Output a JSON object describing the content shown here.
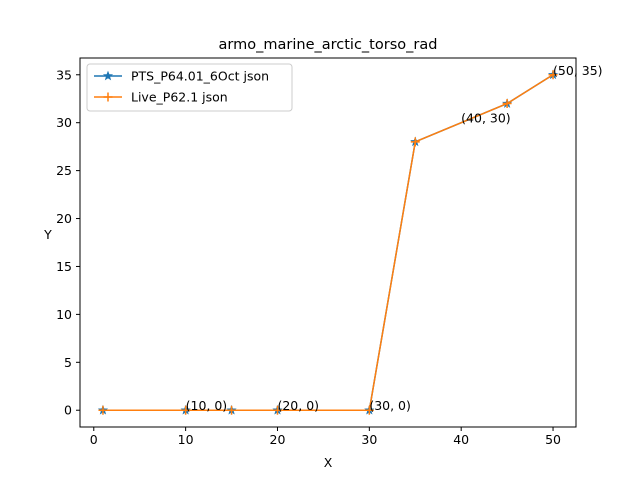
{
  "chart_data": {
    "type": "line",
    "title": "armo_marine_arctic_torso_rad",
    "xlabel": "X",
    "ylabel": "Y",
    "xlim": [
      -1.5,
      52.5
    ],
    "ylim": [
      -1.75,
      36.75
    ],
    "xticks": [
      0,
      10,
      20,
      30,
      40,
      50
    ],
    "yticks": [
      0,
      5,
      10,
      15,
      20,
      25,
      30,
      35
    ],
    "grid": false,
    "legend_position": "upper-left",
    "x": [
      1,
      10,
      15,
      20,
      30,
      35,
      40,
      45,
      50
    ],
    "series": [
      {
        "name": "PTS_P64.01_6Oct json",
        "color": "#1f77b4",
        "marker": "star",
        "x": [
          1,
          10,
          15,
          20,
          30,
          35,
          45,
          50
        ],
        "y": [
          0,
          0,
          0,
          0,
          0,
          28,
          32,
          35
        ]
      },
      {
        "name": "Live_P62.1 json",
        "color": "#ff7f0e",
        "marker": "plus",
        "x": [
          1,
          10,
          15,
          20,
          30,
          35,
          45,
          50
        ],
        "y": [
          0,
          0,
          0,
          0,
          0,
          28,
          32,
          35
        ]
      }
    ],
    "annotations": [
      {
        "text": "(10, 0)",
        "x": 10,
        "y": 0
      },
      {
        "text": "(20, 0)",
        "x": 20,
        "y": 0
      },
      {
        "text": "(30, 0)",
        "x": 30,
        "y": 0
      },
      {
        "text": "(40, 30)",
        "x": 40,
        "y": 30
      },
      {
        "text": "(50, 35)",
        "x": 50,
        "y": 35
      }
    ]
  }
}
